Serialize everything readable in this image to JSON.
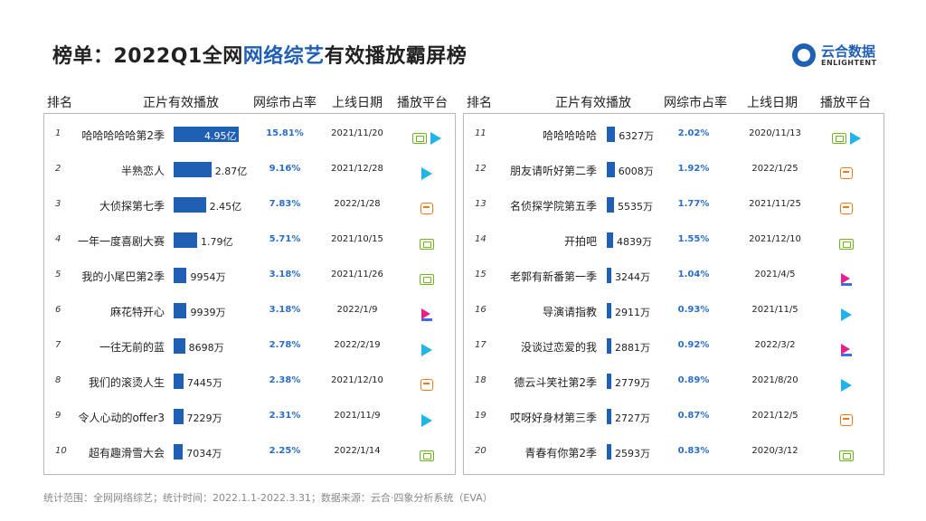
{
  "title": {
    "prefix": "榜单：2022Q1全网",
    "highlight": "网络综艺",
    "suffix": "有效播放霸屏榜"
  },
  "logo": {
    "cn": "云合数据",
    "en": "ENLIGHTENT"
  },
  "headers": {
    "rank": "排名",
    "views": "正片有效播放",
    "share": "网综市占率",
    "date": "上线日期",
    "platform": "播放平台"
  },
  "colors": {
    "bar": "#1f5fb4",
    "share_text": "#2a6ec7",
    "iqiyi": "#6fb51f",
    "tencent": "#23b3e8",
    "mango": "#f07a1a",
    "youku": "#e8208c"
  },
  "footer": "统计范围：全网网络综艺；统计时间：2022.1.1-2022.3.31；数据来源：云合·四象分析系统（EVA）",
  "chart_data": {
    "type": "table",
    "title": "榜单：2022Q1全网网络综艺有效播放霸屏榜",
    "columns": [
      "排名",
      "正片有效播放",
      "网综市占率",
      "上线日期",
      "播放平台"
    ],
    "rows": [
      {
        "rank": "1",
        "name": "哈哈哈哈哈第2季",
        "value_wan": 49500,
        "value_label": "4.95亿",
        "share": "15.81%",
        "date": "2021/11/20",
        "platforms": [
          "iqiyi",
          "tencent"
        ]
      },
      {
        "rank": "2",
        "name": "半熟恋人",
        "value_wan": 28700,
        "value_label": "2.87亿",
        "share": "9.16%",
        "date": "2021/12/28",
        "platforms": [
          "tencent"
        ]
      },
      {
        "rank": "3",
        "name": "大侦探第七季",
        "value_wan": 24500,
        "value_label": "2.45亿",
        "share": "7.83%",
        "date": "2022/1/28",
        "platforms": [
          "mango"
        ]
      },
      {
        "rank": "4",
        "name": "一年一度喜剧大赛",
        "value_wan": 17900,
        "value_label": "1.79亿",
        "share": "5.71%",
        "date": "2021/10/15",
        "platforms": [
          "iqiyi"
        ]
      },
      {
        "rank": "5",
        "name": "我的小尾巴第2季",
        "value_wan": 9954,
        "value_label": "9954万",
        "share": "3.18%",
        "date": "2021/11/26",
        "platforms": [
          "iqiyi"
        ]
      },
      {
        "rank": "6",
        "name": "麻花特开心",
        "value_wan": 9939,
        "value_label": "9939万",
        "share": "3.18%",
        "date": "2022/1/9",
        "platforms": [
          "youku"
        ]
      },
      {
        "rank": "7",
        "name": "一往无前的蓝",
        "value_wan": 8698,
        "value_label": "8698万",
        "share": "2.78%",
        "date": "2022/2/19",
        "platforms": [
          "tencent"
        ]
      },
      {
        "rank": "8",
        "name": "我们的滚烫人生",
        "value_wan": 7445,
        "value_label": "7445万",
        "share": "2.38%",
        "date": "2021/12/10",
        "platforms": [
          "mango"
        ]
      },
      {
        "rank": "9",
        "name": "令人心动的offer3",
        "value_wan": 7229,
        "value_label": "7229万",
        "share": "2.31%",
        "date": "2021/11/9",
        "platforms": [
          "tencent"
        ]
      },
      {
        "rank": "10",
        "name": "超有趣滑雪大会",
        "value_wan": 7034,
        "value_label": "7034万",
        "share": "2.25%",
        "date": "2022/1/14",
        "platforms": [
          "iqiyi"
        ]
      },
      {
        "rank": "11",
        "name": "哈哈哈哈哈",
        "value_wan": 6327,
        "value_label": "6327万",
        "share": "2.02%",
        "date": "2020/11/13",
        "platforms": [
          "iqiyi",
          "tencent"
        ]
      },
      {
        "rank": "12",
        "name": "朋友请听好第二季",
        "value_wan": 6008,
        "value_label": "6008万",
        "share": "1.92%",
        "date": "2022/1/25",
        "platforms": [
          "mango"
        ]
      },
      {
        "rank": "13",
        "name": "名侦探学院第五季",
        "value_wan": 5535,
        "value_label": "5535万",
        "share": "1.77%",
        "date": "2021/11/25",
        "platforms": [
          "mango"
        ]
      },
      {
        "rank": "14",
        "name": "开拍吧",
        "value_wan": 4839,
        "value_label": "4839万",
        "share": "1.55%",
        "date": "2021/12/10",
        "platforms": [
          "iqiyi"
        ]
      },
      {
        "rank": "15",
        "name": "老郭有新番第一季",
        "value_wan": 3244,
        "value_label": "3244万",
        "share": "1.04%",
        "date": "2021/4/5",
        "platforms": [
          "youku"
        ]
      },
      {
        "rank": "16",
        "name": "导演请指教",
        "value_wan": 2911,
        "value_label": "2911万",
        "share": "0.93%",
        "date": "2021/11/5",
        "platforms": [
          "tencent"
        ]
      },
      {
        "rank": "17",
        "name": "没谈过恋爱的我",
        "value_wan": 2881,
        "value_label": "2881万",
        "share": "0.92%",
        "date": "2022/3/2",
        "platforms": [
          "youku"
        ]
      },
      {
        "rank": "18",
        "name": "德云斗笑社第2季",
        "value_wan": 2779,
        "value_label": "2779万",
        "share": "0.89%",
        "date": "2021/8/20",
        "platforms": [
          "tencent"
        ]
      },
      {
        "rank": "19",
        "name": "哎呀好身材第三季",
        "value_wan": 2727,
        "value_label": "2727万",
        "share": "0.87%",
        "date": "2021/12/5",
        "platforms": [
          "mango"
        ]
      },
      {
        "rank": "20",
        "name": "青春有你第2季",
        "value_wan": 2593,
        "value_label": "2593万",
        "share": "0.83%",
        "date": "2020/3/12",
        "platforms": [
          "iqiyi"
        ]
      }
    ]
  }
}
